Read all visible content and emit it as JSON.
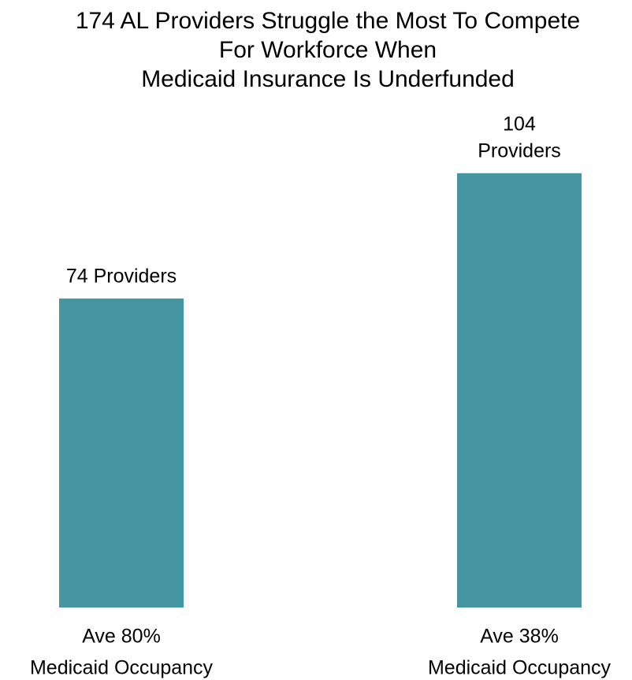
{
  "chart_data": {
    "type": "bar",
    "title": [
      "174 AL Providers Struggle the Most To Compete",
      "For Workforce When",
      "Medicaid Insurance Is Underfunded"
    ],
    "categories": [
      [
        "Ave 80%",
        "Medicaid Occupancy"
      ],
      [
        "Ave 38%",
        "Medicaid Occupancy"
      ]
    ],
    "values": [
      74,
      104
    ],
    "value_labels": [
      [
        "74 Providers"
      ],
      [
        "104",
        "Providers"
      ]
    ],
    "color": "#4596a0",
    "ylim": [
      0,
      110
    ]
  }
}
